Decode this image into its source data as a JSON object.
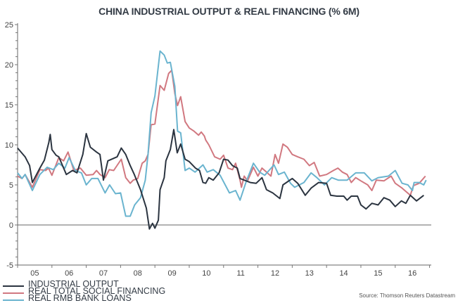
{
  "chart_data": {
    "type": "line",
    "title": "CHINA INDUSTRIAL OUTPUT & REAL FINANCING (% 6M)",
    "xlabel": "",
    "ylabel": "",
    "xlim": [
      2005,
      2017.05
    ],
    "ylim": [
      -5,
      25
    ],
    "yticks": [
      -5,
      0,
      5,
      10,
      15,
      20,
      25
    ],
    "ytick_labels": [
      "-5",
      "0",
      "5",
      "10",
      "15",
      "20",
      "25"
    ],
    "xtick_labels": [
      "05",
      "06",
      "07",
      "08",
      "09",
      "10",
      "11",
      "12",
      "13",
      "14",
      "15",
      "16"
    ],
    "xtick_years": [
      2005,
      2006,
      2007,
      2008,
      2009,
      2010,
      2011,
      2012,
      2013,
      2014,
      2015,
      2016
    ],
    "zero_line": true,
    "grid": false,
    "legend_placement": "bottom-left",
    "source": "Source: Thomson Reuters Datastream",
    "series": [
      {
        "name": "INDUSTRIAL OUTPUT",
        "color": "#2b3440",
        "points": [
          [
            2005.0,
            9.6
          ],
          [
            2005.22,
            8.5
          ],
          [
            2005.35,
            7.4
          ],
          [
            2005.43,
            5.3
          ],
          [
            2005.65,
            7.1
          ],
          [
            2005.78,
            8.1
          ],
          [
            2005.91,
            10.3
          ],
          [
            2005.95,
            11.3
          ],
          [
            2006.0,
            9.4
          ],
          [
            2006.12,
            8.7
          ],
          [
            2006.2,
            8.5
          ],
          [
            2006.42,
            6.3
          ],
          [
            2006.6,
            6.8
          ],
          [
            2006.73,
            6.5
          ],
          [
            2006.9,
            8.8
          ],
          [
            2007.0,
            11.4
          ],
          [
            2007.12,
            9.7
          ],
          [
            2007.3,
            9.1
          ],
          [
            2007.4,
            8.8
          ],
          [
            2007.5,
            5.6
          ],
          [
            2007.63,
            8.0
          ],
          [
            2007.9,
            8.5
          ],
          [
            2008.02,
            9.6
          ],
          [
            2008.15,
            8.8
          ],
          [
            2008.28,
            7.4
          ],
          [
            2008.4,
            6.3
          ],
          [
            2008.58,
            4.4
          ],
          [
            2008.75,
            2.1
          ],
          [
            2008.84,
            -0.5
          ],
          [
            2008.93,
            0.2
          ],
          [
            2009.0,
            -0.4
          ],
          [
            2009.1,
            0.6
          ],
          [
            2009.15,
            4.4
          ],
          [
            2009.27,
            5.9
          ],
          [
            2009.32,
            8.0
          ],
          [
            2009.45,
            9.4
          ],
          [
            2009.55,
            11.9
          ],
          [
            2009.65,
            9.0
          ],
          [
            2009.75,
            10.1
          ],
          [
            2009.88,
            8.2
          ],
          [
            2010.0,
            7.9
          ],
          [
            2010.18,
            7.1
          ],
          [
            2010.3,
            6.8
          ],
          [
            2010.4,
            5.3
          ],
          [
            2010.48,
            5.2
          ],
          [
            2010.57,
            5.9
          ],
          [
            2010.7,
            5.6
          ],
          [
            2010.87,
            6.5
          ],
          [
            2011.0,
            8.2
          ],
          [
            2011.13,
            8.1
          ],
          [
            2011.26,
            7.4
          ],
          [
            2011.4,
            7.1
          ],
          [
            2011.48,
            5.8
          ],
          [
            2011.6,
            5.6
          ],
          [
            2011.78,
            5.3
          ],
          [
            2011.95,
            5.2
          ],
          [
            2012.12,
            5.9
          ],
          [
            2012.25,
            4.4
          ],
          [
            2012.43,
            4.0
          ],
          [
            2012.64,
            3.3
          ],
          [
            2012.73,
            5.0
          ],
          [
            2013.0,
            5.8
          ],
          [
            2013.16,
            5.2
          ],
          [
            2013.38,
            3.7
          ],
          [
            2013.55,
            4.6
          ],
          [
            2013.77,
            5.3
          ],
          [
            2014.0,
            5.2
          ],
          [
            2014.12,
            3.7
          ],
          [
            2014.3,
            3.6
          ],
          [
            2014.5,
            3.6
          ],
          [
            2014.6,
            3.1
          ],
          [
            2014.72,
            3.6
          ],
          [
            2014.9,
            3.6
          ],
          [
            2015.0,
            2.5
          ],
          [
            2015.15,
            2.0
          ],
          [
            2015.32,
            2.7
          ],
          [
            2015.5,
            2.5
          ],
          [
            2015.67,
            3.4
          ],
          [
            2015.84,
            3.1
          ],
          [
            2016.0,
            2.3
          ],
          [
            2016.18,
            3.0
          ],
          [
            2016.31,
            2.7
          ],
          [
            2016.44,
            3.7
          ],
          [
            2016.62,
            3.0
          ],
          [
            2016.83,
            3.7
          ]
        ]
      },
      {
        "name": "REAL TOTAL SOCIAL FINANCING",
        "color": "#d17880",
        "points": [
          [
            2005.0,
            6.1
          ],
          [
            2005.13,
            5.8
          ],
          [
            2005.22,
            6.3
          ],
          [
            2005.43,
            4.7
          ],
          [
            2005.65,
            6.9
          ],
          [
            2005.82,
            6.8
          ],
          [
            2005.9,
            7.1
          ],
          [
            2006.0,
            6.2
          ],
          [
            2006.2,
            8.4
          ],
          [
            2006.34,
            8.0
          ],
          [
            2006.47,
            9.1
          ],
          [
            2006.64,
            6.8
          ],
          [
            2006.83,
            7.1
          ],
          [
            2007.0,
            6.2
          ],
          [
            2007.2,
            6.3
          ],
          [
            2007.3,
            6.8
          ],
          [
            2007.4,
            6.3
          ],
          [
            2007.55,
            5.9
          ],
          [
            2007.67,
            6.9
          ],
          [
            2007.8,
            6.8
          ],
          [
            2008.02,
            8.2
          ],
          [
            2008.15,
            5.9
          ],
          [
            2008.28,
            5.2
          ],
          [
            2008.37,
            5.6
          ],
          [
            2008.5,
            5.8
          ],
          [
            2008.63,
            7.7
          ],
          [
            2008.72,
            8.0
          ],
          [
            2008.8,
            8.8
          ],
          [
            2008.89,
            12.5
          ],
          [
            2009.0,
            12.6
          ],
          [
            2009.15,
            17.4
          ],
          [
            2009.27,
            16.8
          ],
          [
            2009.4,
            18.9
          ],
          [
            2009.49,
            19.3
          ],
          [
            2009.58,
            16.4
          ],
          [
            2009.66,
            14.9
          ],
          [
            2009.75,
            16.0
          ],
          [
            2009.88,
            12.9
          ],
          [
            2010.0,
            12.1
          ],
          [
            2010.14,
            11.7
          ],
          [
            2010.27,
            11.2
          ],
          [
            2010.35,
            11.6
          ],
          [
            2010.44,
            11.1
          ],
          [
            2010.48,
            10.6
          ],
          [
            2010.57,
            10.0
          ],
          [
            2010.74,
            8.5
          ],
          [
            2010.9,
            8.2
          ],
          [
            2011.0,
            8.7
          ],
          [
            2011.13,
            7.1
          ],
          [
            2011.26,
            6.9
          ],
          [
            2011.35,
            7.7
          ],
          [
            2011.48,
            5.6
          ],
          [
            2011.52,
            4.7
          ],
          [
            2011.6,
            6.1
          ],
          [
            2011.7,
            5.5
          ],
          [
            2011.87,
            7.2
          ],
          [
            2012.0,
            6.1
          ],
          [
            2012.12,
            7.1
          ],
          [
            2012.25,
            6.6
          ],
          [
            2012.38,
            6.1
          ],
          [
            2012.5,
            8.8
          ],
          [
            2012.6,
            7.7
          ],
          [
            2012.73,
            10.1
          ],
          [
            2012.86,
            9.7
          ],
          [
            2013.0,
            8.8
          ],
          [
            2013.16,
            8.5
          ],
          [
            2013.34,
            8.2
          ],
          [
            2013.5,
            7.4
          ],
          [
            2013.64,
            7.8
          ],
          [
            2013.8,
            6.1
          ],
          [
            2014.0,
            6.3
          ],
          [
            2014.2,
            6.8
          ],
          [
            2014.33,
            7.1
          ],
          [
            2014.46,
            6.6
          ],
          [
            2014.6,
            6.3
          ],
          [
            2014.72,
            5.3
          ],
          [
            2014.85,
            5.9
          ],
          [
            2015.0,
            5.5
          ],
          [
            2015.2,
            5.0
          ],
          [
            2015.32,
            4.3
          ],
          [
            2015.45,
            5.6
          ],
          [
            2015.67,
            5.5
          ],
          [
            2015.88,
            6.1
          ],
          [
            2016.0,
            5.2
          ],
          [
            2016.2,
            4.6
          ],
          [
            2016.44,
            3.7
          ],
          [
            2016.53,
            4.9
          ],
          [
            2016.7,
            5.2
          ],
          [
            2016.88,
            6.1
          ]
        ]
      },
      {
        "name": "REAL RMB BANK LOANS",
        "color": "#6ab4cf",
        "points": [
          [
            2005.0,
            6.5
          ],
          [
            2005.13,
            5.8
          ],
          [
            2005.22,
            6.3
          ],
          [
            2005.43,
            4.3
          ],
          [
            2005.65,
            6.3
          ],
          [
            2005.86,
            7.2
          ],
          [
            2006.04,
            6.9
          ],
          [
            2006.2,
            7.7
          ],
          [
            2006.38,
            7.1
          ],
          [
            2006.5,
            8.4
          ],
          [
            2006.68,
            6.8
          ],
          [
            2006.86,
            6.5
          ],
          [
            2007.0,
            5.0
          ],
          [
            2007.16,
            5.8
          ],
          [
            2007.34,
            5.8
          ],
          [
            2007.55,
            4.0
          ],
          [
            2007.68,
            5.0
          ],
          [
            2007.85,
            3.9
          ],
          [
            2008.0,
            4.0
          ],
          [
            2008.15,
            1.1
          ],
          [
            2008.28,
            1.1
          ],
          [
            2008.41,
            2.5
          ],
          [
            2008.58,
            3.4
          ],
          [
            2008.72,
            5.6
          ],
          [
            2008.8,
            8.8
          ],
          [
            2008.89,
            14.0
          ],
          [
            2009.0,
            16.1
          ],
          [
            2009.15,
            21.7
          ],
          [
            2009.27,
            21.2
          ],
          [
            2009.36,
            20.2
          ],
          [
            2009.45,
            20.3
          ],
          [
            2009.58,
            17.3
          ],
          [
            2009.66,
            11.7
          ],
          [
            2009.75,
            11.5
          ],
          [
            2009.88,
            6.8
          ],
          [
            2010.0,
            7.1
          ],
          [
            2010.17,
            6.6
          ],
          [
            2010.4,
            7.5
          ],
          [
            2010.52,
            6.6
          ],
          [
            2010.7,
            6.9
          ],
          [
            2010.9,
            6.2
          ],
          [
            2011.17,
            4.0
          ],
          [
            2011.35,
            4.3
          ],
          [
            2011.48,
            3.1
          ],
          [
            2011.65,
            5.3
          ],
          [
            2011.87,
            7.7
          ],
          [
            2012.05,
            6.6
          ],
          [
            2012.2,
            6.2
          ],
          [
            2012.47,
            7.5
          ],
          [
            2012.6,
            6.3
          ],
          [
            2012.77,
            6.6
          ],
          [
            2012.95,
            5.2
          ],
          [
            2013.07,
            4.7
          ],
          [
            2013.34,
            5.3
          ],
          [
            2013.55,
            6.5
          ],
          [
            2013.72,
            5.9
          ],
          [
            2013.94,
            5.0
          ],
          [
            2014.15,
            5.9
          ],
          [
            2014.34,
            5.6
          ],
          [
            2014.6,
            5.6
          ],
          [
            2014.85,
            6.5
          ],
          [
            2015.1,
            6.5
          ],
          [
            2015.32,
            5.5
          ],
          [
            2015.5,
            5.9
          ],
          [
            2015.8,
            6.1
          ],
          [
            2016.0,
            6.8
          ],
          [
            2016.2,
            5.2
          ],
          [
            2016.37,
            5.0
          ],
          [
            2016.5,
            4.3
          ],
          [
            2016.55,
            5.3
          ],
          [
            2016.7,
            5.3
          ],
          [
            2016.83,
            5.0
          ],
          [
            2016.9,
            5.6
          ]
        ]
      }
    ]
  }
}
